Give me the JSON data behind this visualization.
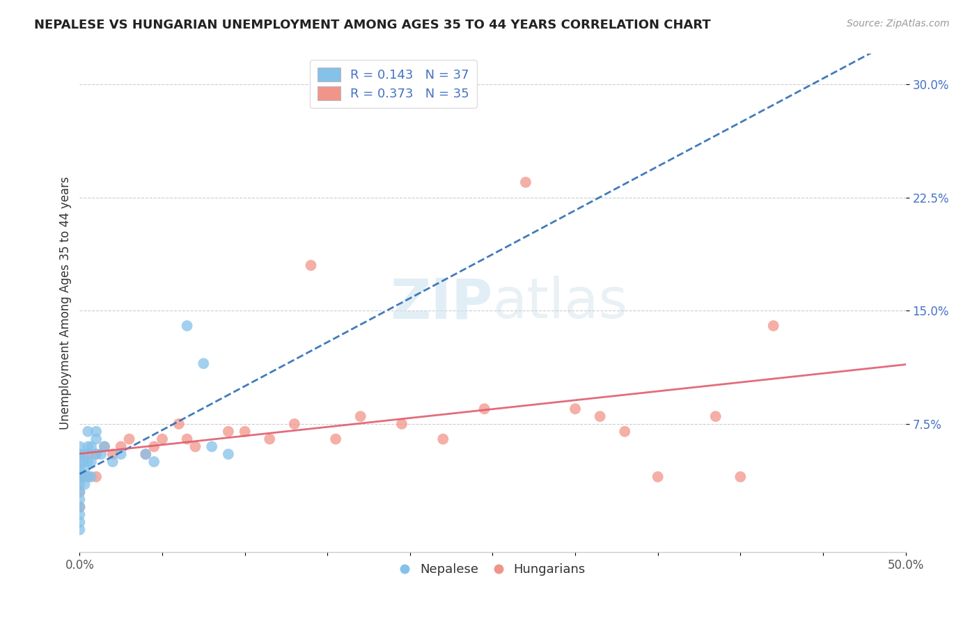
{
  "title": "NEPALESE VS HUNGARIAN UNEMPLOYMENT AMONG AGES 35 TO 44 YEARS CORRELATION CHART",
  "source": "Source: ZipAtlas.com",
  "ylabel": "Unemployment Among Ages 35 to 44 years",
  "xlim": [
    0.0,
    0.5
  ],
  "ylim": [
    -0.01,
    0.32
  ],
  "xticks": [
    0.0,
    0.05,
    0.1,
    0.15,
    0.2,
    0.25,
    0.3,
    0.35,
    0.4,
    0.45,
    0.5
  ],
  "xticklabels": [
    "0.0%",
    "",
    "",
    "",
    "",
    "",
    "",
    "",
    "",
    "",
    "50.0%"
  ],
  "ytick_positions": [
    0.075,
    0.15,
    0.225,
    0.3
  ],
  "ytick_labels": [
    "7.5%",
    "15.0%",
    "22.5%",
    "30.0%"
  ],
  "grid_color": "#cccccc",
  "background_color": "#ffffff",
  "nepalese_color": "#85C1E9",
  "hungarian_color": "#F1948A",
  "nepalese_R": 0.143,
  "nepalese_N": 37,
  "hungarian_R": 0.373,
  "hungarian_N": 35,
  "nepalese_line_color": "#2E6DB4",
  "hungarian_line_color": "#E05C6E",
  "legend_nepalese_label": "Nepalese",
  "legend_hungarian_label": "Hungarians",
  "nepalese_x": [
    0.0,
    0.0,
    0.0,
    0.0,
    0.0,
    0.0,
    0.0,
    0.0,
    0.0,
    0.0,
    0.0,
    0.0,
    0.002,
    0.002,
    0.003,
    0.003,
    0.003,
    0.005,
    0.005,
    0.005,
    0.005,
    0.007,
    0.007,
    0.007,
    0.01,
    0.01,
    0.01,
    0.013,
    0.015,
    0.02,
    0.025,
    0.04,
    0.045,
    0.065,
    0.075,
    0.08,
    0.09
  ],
  "nepalese_y": [
    0.005,
    0.01,
    0.015,
    0.02,
    0.025,
    0.03,
    0.035,
    0.04,
    0.045,
    0.05,
    0.055,
    0.06,
    0.04,
    0.05,
    0.035,
    0.045,
    0.055,
    0.04,
    0.05,
    0.06,
    0.07,
    0.04,
    0.05,
    0.06,
    0.055,
    0.065,
    0.07,
    0.055,
    0.06,
    0.05,
    0.055,
    0.055,
    0.05,
    0.14,
    0.115,
    0.06,
    0.055
  ],
  "hungarian_x": [
    0.0,
    0.0,
    0.0,
    0.005,
    0.005,
    0.01,
    0.01,
    0.015,
    0.02,
    0.025,
    0.03,
    0.04,
    0.045,
    0.05,
    0.06,
    0.065,
    0.07,
    0.09,
    0.1,
    0.115,
    0.13,
    0.14,
    0.155,
    0.17,
    0.195,
    0.22,
    0.245,
    0.27,
    0.3,
    0.315,
    0.33,
    0.35,
    0.385,
    0.4,
    0.42
  ],
  "hungarian_y": [
    0.02,
    0.03,
    0.04,
    0.055,
    0.04,
    0.04,
    0.055,
    0.06,
    0.055,
    0.06,
    0.065,
    0.055,
    0.06,
    0.065,
    0.075,
    0.065,
    0.06,
    0.07,
    0.07,
    0.065,
    0.075,
    0.18,
    0.065,
    0.08,
    0.075,
    0.065,
    0.085,
    0.235,
    0.085,
    0.08,
    0.07,
    0.04,
    0.08,
    0.04,
    0.14
  ]
}
